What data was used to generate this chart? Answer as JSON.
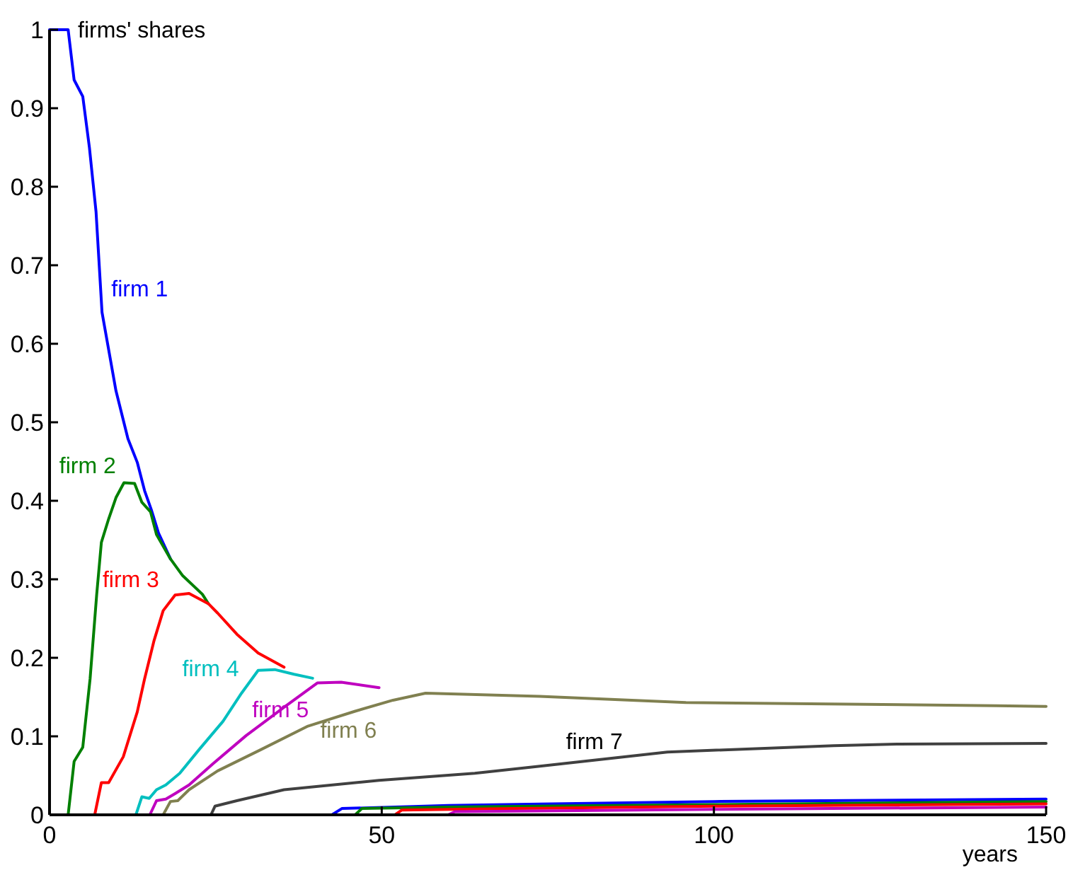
{
  "chart_data": {
    "type": "line",
    "xlabel": "years",
    "ylabel": "firms' shares",
    "xlim": [
      0,
      150
    ],
    "xticks": [
      0,
      50,
      100,
      150
    ],
    "ylim": [
      0,
      1
    ],
    "yticks": [
      0,
      0.1,
      0.2,
      0.3,
      0.4,
      0.5,
      0.6,
      0.7,
      0.8,
      0.9,
      1
    ],
    "grid": false,
    "line_style": "solid",
    "marker": "none",
    "series": [
      {
        "name": "firm 1",
        "color": "#0000ff",
        "x": [
          0,
          2.8,
          3.7,
          5,
          6,
          7,
          7.9,
          10,
          11.8,
          13.2,
          14.3,
          15.3,
          16.4,
          18.2
        ],
        "values": [
          1,
          1,
          0.936,
          0.915,
          0.85,
          0.768,
          0.64,
          0.54,
          0.479,
          0.449,
          0.413,
          0.389,
          0.359,
          0.326
        ]
      },
      {
        "name": "firm 2",
        "color": "#008000",
        "x": [
          2.8,
          3.7,
          5,
          6.1,
          7.1,
          7.8,
          8.9,
          10,
          11.2,
          12.8,
          13.9,
          15.2,
          16.1,
          18.2,
          20,
          23,
          23.9
        ],
        "values": [
          0,
          0.068,
          0.086,
          0.173,
          0.281,
          0.347,
          0.377,
          0.404,
          0.423,
          0.422,
          0.398,
          0.386,
          0.357,
          0.326,
          0.305,
          0.281,
          0.269
        ]
      },
      {
        "name": "firm 3",
        "color": "#ff0000",
        "x": [
          6.8,
          7.8,
          8.9,
          11.1,
          13.2,
          14.3,
          15.7,
          17.1,
          18.9,
          21,
          23.9,
          25.3,
          28.2,
          31.4,
          35.3
        ],
        "values": [
          0,
          0.041,
          0.041,
          0.074,
          0.131,
          0.173,
          0.221,
          0.26,
          0.28,
          0.282,
          0.269,
          0.257,
          0.23,
          0.206,
          0.188
        ]
      },
      {
        "name": "firm 4",
        "color": "#00bfbf",
        "x": [
          13,
          13.9,
          15,
          16.1,
          17.5,
          19.6,
          22.5,
          26.1,
          28.9,
          31.4,
          33.9,
          36.8,
          39.6
        ],
        "values": [
          0,
          0.023,
          0.021,
          0.032,
          0.038,
          0.053,
          0.083,
          0.119,
          0.155,
          0.184,
          0.185,
          0.179,
          0.174
        ]
      },
      {
        "name": "firm 5",
        "color": "#bf00bf",
        "x": [
          15.1,
          16.1,
          17.5,
          18.9,
          21,
          24.6,
          29.6,
          35.3,
          40.3,
          43.9,
          49.6
        ],
        "values": [
          0,
          0.018,
          0.02,
          0.027,
          0.038,
          0.065,
          0.101,
          0.137,
          0.168,
          0.169,
          0.162
        ]
      },
      {
        "name": "firm 6",
        "color": "#808050",
        "x": [
          17.1,
          18.2,
          19.3,
          21,
          25.3,
          31.8,
          38.9,
          46,
          51.7,
          56.6,
          73.8,
          95.8,
          120,
          142.5,
          150
        ],
        "values": [
          0,
          0.017,
          0.018,
          0.032,
          0.056,
          0.083,
          0.113,
          0.132,
          0.146,
          0.155,
          0.151,
          0.143,
          0.141,
          0.139,
          0.138
        ]
      },
      {
        "name": "firm 7",
        "color": "#404040",
        "x": [
          24.3,
          24.9,
          28.2,
          35.3,
          49.6,
          64,
          73.8,
          93,
          118,
          127.5,
          150
        ],
        "values": [
          0,
          0.011,
          0.018,
          0.032,
          0.044,
          0.053,
          0.062,
          0.08,
          0.088,
          0.09,
          0.091
        ]
      },
      {
        "color": "#0000ff",
        "x": [
          42.5,
          44,
          60,
          100,
          150
        ],
        "values": [
          0,
          0.008,
          0.012,
          0.017,
          0.02
        ]
      },
      {
        "color": "#008000",
        "x": [
          46,
          47,
          60,
          100,
          150
        ],
        "values": [
          0,
          0.008,
          0.01,
          0.013,
          0.017
        ]
      },
      {
        "color": "#ff0000",
        "x": [
          52,
          53,
          70,
          100,
          150
        ],
        "values": [
          0,
          0.006,
          0.008,
          0.011,
          0.014
        ]
      },
      {
        "color": "#bf00bf",
        "x": [
          60,
          61,
          100,
          150
        ],
        "values": [
          0,
          0.004,
          0.007,
          0.01
        ]
      }
    ]
  }
}
